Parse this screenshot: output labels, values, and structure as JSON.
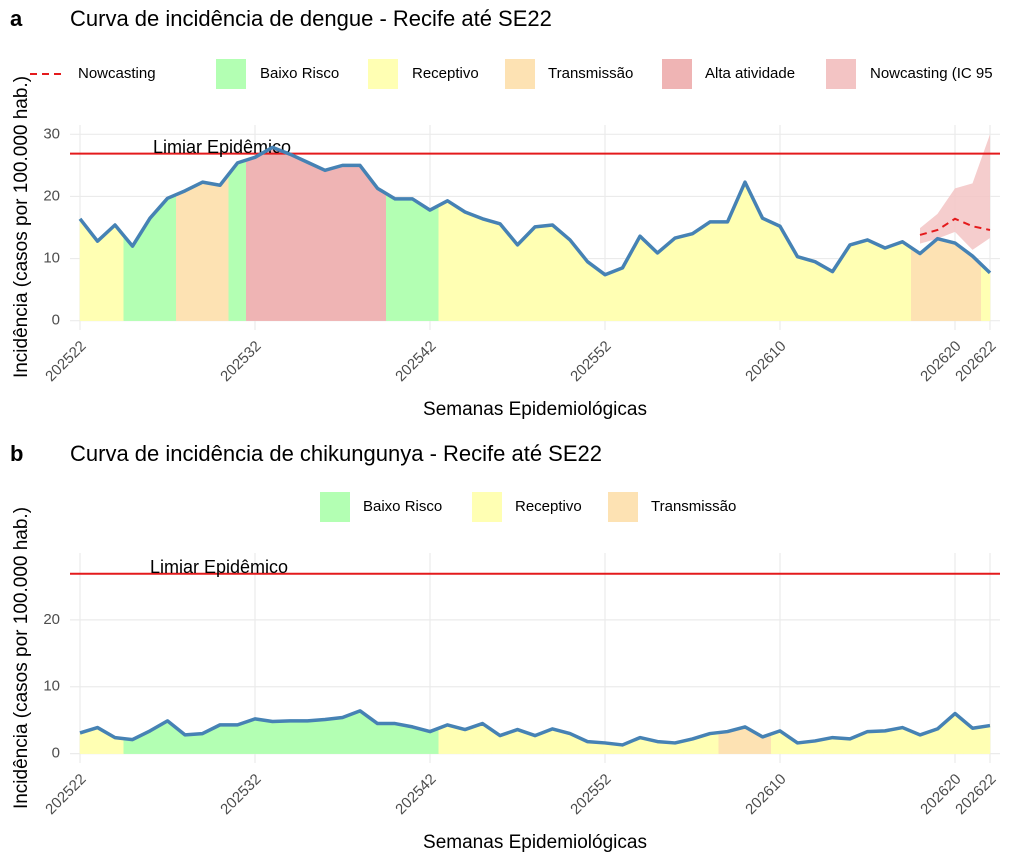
{
  "chart_data": [
    {
      "type": "line",
      "panel_label": "a",
      "title": "Curva de incidência de dengue - Recife até SE22",
      "x_label": "Semanas Epidemiológicas",
      "y_label": "Incidência (casos por 100.000 hab.)",
      "categories": [
        "202522",
        null,
        null,
        null,
        null,
        null,
        null,
        null,
        null,
        null,
        "202532",
        null,
        null,
        null,
        null,
        null,
        null,
        null,
        null,
        null,
        "202542",
        null,
        null,
        null,
        null,
        null,
        null,
        null,
        null,
        null,
        "202552",
        null,
        null,
        null,
        null,
        null,
        null,
        null,
        null,
        null,
        "202610",
        null,
        null,
        null,
        null,
        null,
        null,
        null,
        null,
        null,
        "202620",
        null,
        "202622"
      ],
      "values": [
        16.4,
        12.8,
        15.4,
        12.0,
        16.5,
        19.7,
        20.9,
        22.3,
        21.8,
        25.4,
        26.3,
        27.9,
        26.8,
        25.5,
        24.2,
        25.0,
        25.0,
        21.3,
        19.6,
        19.6,
        17.8,
        19.3,
        17.5,
        16.4,
        15.6,
        12.2,
        15.1,
        15.4,
        13.0,
        9.5,
        7.4,
        8.5,
        13.6,
        10.9,
        13.3,
        14.0,
        15.9,
        15.9,
        22.3,
        16.5,
        15.2,
        10.3,
        9.5,
        7.9,
        12.2,
        13.0,
        11.7,
        12.7,
        10.8,
        13.2,
        12.5,
        10.4,
        7.7
      ],
      "color": "#4682b4",
      "nowcast": {
        "name": "Nowcasting",
        "color": "#e41a1c",
        "values": [
          null,
          null,
          null,
          null,
          null,
          null,
          null,
          null,
          null,
          null,
          null,
          null,
          null,
          null,
          null,
          null,
          null,
          null,
          null,
          null,
          null,
          null,
          null,
          null,
          null,
          null,
          null,
          null,
          null,
          null,
          null,
          null,
          null,
          null,
          null,
          null,
          null,
          null,
          null,
          null,
          null,
          null,
          null,
          null,
          null,
          null,
          null,
          null,
          13.8,
          14.6,
          16.4,
          15.2,
          14.6
        ]
      },
      "interval": {
        "name": "Nowcasting (IC 95",
        "color": "#f3c4c4",
        "lower": [
          null,
          null,
          null,
          null,
          null,
          null,
          null,
          null,
          null,
          null,
          null,
          null,
          null,
          null,
          null,
          null,
          null,
          null,
          null,
          null,
          null,
          null,
          null,
          null,
          null,
          null,
          null,
          null,
          null,
          null,
          null,
          null,
          null,
          null,
          null,
          null,
          null,
          null,
          null,
          null,
          null,
          null,
          null,
          null,
          null,
          null,
          null,
          null,
          12.4,
          13.2,
          14.3,
          11.4,
          13.3
        ],
        "upper": [
          null,
          null,
          null,
          null,
          null,
          null,
          null,
          null,
          null,
          null,
          null,
          null,
          null,
          null,
          null,
          null,
          null,
          null,
          null,
          null,
          null,
          null,
          null,
          null,
          null,
          null,
          null,
          null,
          null,
          null,
          null,
          null,
          null,
          null,
          null,
          null,
          null,
          null,
          null,
          null,
          null,
          null,
          null,
          null,
          null,
          null,
          null,
          null,
          14.9,
          17.2,
          21.3,
          22.1,
          30.0
        ]
      },
      "levels": [
        {
          "name": "Baixo Risco",
          "color": "#b3ffb3"
        },
        {
          "name": "Receptivo",
          "color": "#ffffb3"
        },
        {
          "name": "Transmissão",
          "color": "#fde2b3"
        },
        {
          "name": "Alta atividade",
          "color": "#efb4b4"
        }
      ],
      "level_by_week": [
        "Receptivo",
        "Receptivo",
        "Receptivo",
        "Baixo Risco",
        "Baixo Risco",
        "Baixo Risco",
        "Transmissão",
        "Transmissão",
        "Transmissão",
        "Baixo Risco",
        "Alta atividade",
        "Alta atividade",
        "Alta atividade",
        "Alta atividade",
        "Alta atividade",
        "Alta atividade",
        "Alta atividade",
        "Alta atividade",
        "Baixo Risco",
        "Baixo Risco",
        "Baixo Risco",
        "Receptivo",
        "Receptivo",
        "Receptivo",
        "Receptivo",
        "Receptivo",
        "Receptivo",
        "Receptivo",
        "Receptivo",
        "Receptivo",
        "Receptivo",
        "Receptivo",
        "Receptivo",
        "Receptivo",
        "Receptivo",
        "Receptivo",
        "Receptivo",
        "Receptivo",
        "Receptivo",
        "Receptivo",
        "Receptivo",
        "Receptivo",
        "Receptivo",
        "Receptivo",
        "Receptivo",
        "Receptivo",
        "Receptivo",
        "Receptivo",
        "Transmissão",
        "Transmissão",
        "Transmissão",
        "Transmissão",
        "Receptivo"
      ],
      "threshold": {
        "label": "Limiar Epidêmico",
        "value": 26.9,
        "color": "#e41a1c"
      },
      "ylim": [
        -1.5,
        31.5
      ],
      "yticks": [
        0,
        10,
        20,
        30
      ],
      "grid": true
    },
    {
      "type": "line",
      "panel_label": "b",
      "title": "Curva de incidência de chikungunya - Recife até SE22",
      "x_label": "Semanas Epidemiológicas",
      "y_label": "Incidência (casos por 100.000 hab.)",
      "categories": [
        "202522",
        null,
        null,
        null,
        null,
        null,
        null,
        null,
        null,
        null,
        "202532",
        null,
        null,
        null,
        null,
        null,
        null,
        null,
        null,
        null,
        "202542",
        null,
        null,
        null,
        null,
        null,
        null,
        null,
        null,
        null,
        "202552",
        null,
        null,
        null,
        null,
        null,
        null,
        null,
        null,
        null,
        "202610",
        null,
        null,
        null,
        null,
        null,
        null,
        null,
        null,
        null,
        "202620",
        null,
        "202622"
      ],
      "values": [
        3.1,
        3.9,
        2.4,
        2.1,
        3.4,
        4.9,
        2.8,
        3.0,
        4.3,
        4.3,
        5.2,
        4.8,
        4.9,
        4.9,
        5.1,
        5.4,
        6.4,
        4.5,
        4.5,
        4.0,
        3.3,
        4.3,
        3.6,
        4.5,
        2.7,
        3.6,
        2.7,
        3.7,
        3.0,
        1.8,
        1.6,
        1.3,
        2.4,
        1.8,
        1.6,
        2.2,
        3.0,
        3.3,
        4.0,
        2.5,
        3.4,
        1.6,
        1.9,
        2.4,
        2.2,
        3.3,
        3.4,
        3.9,
        2.8,
        3.7,
        6.0,
        3.8,
        4.2
      ],
      "color": "#4682b4",
      "levels": [
        {
          "name": "Baixo Risco",
          "color": "#b3ffb3"
        },
        {
          "name": "Receptivo",
          "color": "#ffffb3"
        },
        {
          "name": "Transmissão",
          "color": "#fde2b3"
        }
      ],
      "level_by_week": [
        "Receptivo",
        "Receptivo",
        "Receptivo",
        "Baixo Risco",
        "Baixo Risco",
        "Baixo Risco",
        "Baixo Risco",
        "Baixo Risco",
        "Baixo Risco",
        "Baixo Risco",
        "Baixo Risco",
        "Baixo Risco",
        "Baixo Risco",
        "Baixo Risco",
        "Baixo Risco",
        "Baixo Risco",
        "Baixo Risco",
        "Baixo Risco",
        "Baixo Risco",
        "Baixo Risco",
        "Baixo Risco",
        "Receptivo",
        "Receptivo",
        "Receptivo",
        "Receptivo",
        "Receptivo",
        "Receptivo",
        "Receptivo",
        "Receptivo",
        "Receptivo",
        "Receptivo",
        "Receptivo",
        "Receptivo",
        "Receptivo",
        "Receptivo",
        "Receptivo",
        "Receptivo",
        "Transmissão",
        "Transmissão",
        "Transmissão",
        "Receptivo",
        "Receptivo",
        "Receptivo",
        "Receptivo",
        "Receptivo",
        "Receptivo",
        "Receptivo",
        "Receptivo",
        "Receptivo",
        "Receptivo",
        "Receptivo",
        "Receptivo",
        "Receptivo"
      ],
      "threshold": {
        "label": "Limiar Epidêmico",
        "value": 26.9,
        "color": "#e41a1c"
      },
      "ylim": [
        -1.4,
        30
      ],
      "yticks": [
        0,
        10,
        20
      ],
      "grid": true
    }
  ]
}
